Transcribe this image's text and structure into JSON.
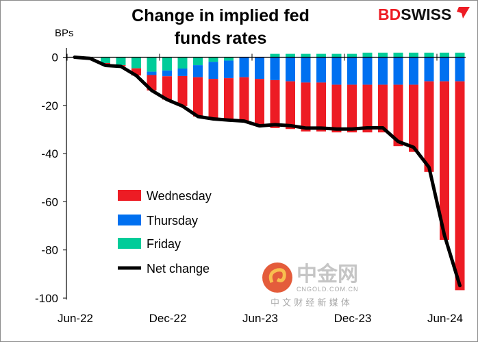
{
  "logo": {
    "text_red": "BD",
    "text_black": "SWISS"
  },
  "watermark": {
    "text": "中金网",
    "sub": "CNGOLD.COM.CN",
    "tagline": "中 文 财 经 新 媒 体"
  },
  "chart_data": {
    "type": "bar",
    "stacked": true,
    "title_lines": [
      "Change in implied fed",
      "funds rates"
    ],
    "ylabel": "BPs",
    "xlabel": "",
    "ylim": [
      -100,
      0
    ],
    "yticks": [
      0,
      -20,
      -40,
      -60,
      -80,
      -100
    ],
    "xtick_labels": [
      "Jun-22",
      "Dec-22",
      "Jun-23",
      "Dec-23",
      "Jun-24"
    ],
    "grid": false,
    "legend_position": "bottom-left",
    "colors": {
      "Wednesday": "#ed1c24",
      "Thursday": "#0070f0",
      "Friday": "#00cc99",
      "Net change": "#000000"
    },
    "categories": [
      "Jun-22",
      "Jul-22",
      "Aug-22",
      "Sep-22",
      "Oct-22",
      "Nov-22",
      "Dec-22",
      "Jan-23",
      "Feb-23",
      "Mar-23",
      "Apr-23",
      "May-23",
      "Jun-23",
      "Jul-23",
      "Aug-23",
      "Sep-23",
      "Oct-23",
      "Nov-23",
      "Dec-23",
      "Jan-24",
      "Feb-24",
      "Mar-24",
      "Apr-24",
      "May-24",
      "Jun-24",
      "Jul-24"
    ],
    "series": [
      {
        "name": "Wednesday",
        "values": [
          0,
          0,
          -1.0,
          -0.5,
          -3.0,
          -6.4,
          -9.7,
          -12.5,
          -16.3,
          -16.6,
          -17.4,
          -18.2,
          -19.5,
          -19.9,
          -19.8,
          -20.3,
          -20.3,
          -19.8,
          -19.8,
          -19.8,
          -19.8,
          -25.5,
          -27.9,
          -37.6,
          -65.8,
          -86.7
        ]
      },
      {
        "name": "Thursday",
        "values": [
          0,
          0,
          0,
          0,
          0,
          -1.4,
          -2.4,
          -3.1,
          -5.0,
          -7.1,
          -7.3,
          -8.3,
          -9.0,
          -9.5,
          -10.0,
          -10.5,
          -10.5,
          -11.4,
          -11.4,
          -11.4,
          -11.4,
          -11.4,
          -11.4,
          -10.0,
          -10.0,
          -10.0
        ]
      },
      {
        "name": "Friday",
        "values": [
          0,
          0,
          -2.4,
          -3.3,
          -4.6,
          -6.0,
          -5.5,
          -4.7,
          -3.3,
          -1.9,
          -1.4,
          0,
          0,
          1.4,
          1.4,
          1.4,
          1.4,
          1.4,
          1.4,
          1.9,
          1.9,
          1.9,
          1.9,
          1.9,
          1.9,
          1.9
        ]
      },
      {
        "name": "Net change",
        "type": "line",
        "values": [
          0,
          -0.5,
          -3.4,
          -3.8,
          -7.6,
          -13.8,
          -17.6,
          -20.3,
          -24.6,
          -25.6,
          -26.1,
          -26.5,
          -28.5,
          -28.0,
          -28.4,
          -29.4,
          -29.4,
          -29.8,
          -29.8,
          -29.3,
          -29.3,
          -35.0,
          -37.4,
          -45.7,
          -73.9,
          -94.8
        ]
      }
    ]
  }
}
